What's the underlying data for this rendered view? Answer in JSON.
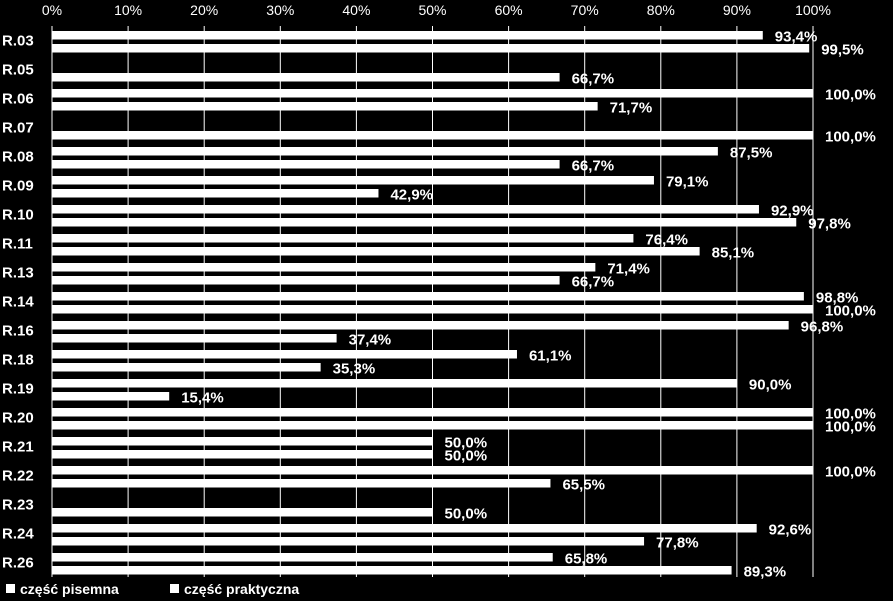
{
  "chart_data": {
    "type": "bar",
    "orientation": "horizontal",
    "categories": [
      "R.03",
      "R.05",
      "R.06",
      "R.07",
      "R.08",
      "R.09",
      "R.10",
      "R.11",
      "R.13",
      "R.14",
      "R.16",
      "R.18",
      "R.19",
      "R.20",
      "R.21",
      "R.22",
      "R.23",
      "R.24",
      "R.26"
    ],
    "series": [
      {
        "name": "część pisemna",
        "values": [
          93.4,
          null,
          100.0,
          null,
          87.5,
          79.1,
          92.9,
          76.4,
          71.4,
          98.8,
          96.8,
          61.1,
          90.0,
          100.0,
          50.0,
          100.0,
          null,
          92.6,
          65.8
        ],
        "labels": [
          "93,4%",
          "",
          "100,0%",
          "",
          "87,5%",
          "79,1%",
          "92,9%",
          "76,4%",
          "71,4%",
          "98,8%",
          "96,8%",
          "61,1%",
          "90,0%",
          "100,0%",
          "50,0%",
          "100,0%",
          "",
          "92,6%",
          "65,8%"
        ]
      },
      {
        "name": "część praktyczna",
        "values": [
          99.5,
          66.7,
          71.7,
          100.0,
          66.7,
          42.9,
          97.8,
          85.1,
          66.7,
          100.0,
          37.4,
          35.3,
          15.4,
          100.0,
          50.0,
          65.5,
          50.0,
          77.8,
          89.3
        ],
        "labels": [
          "99,5%",
          "66,7%",
          "71,7%",
          "100,0%",
          "66,7%",
          "42,9%",
          "97,8%",
          "85,1%",
          "66,7%",
          "100,0%",
          "37,4%",
          "35,3%",
          "15,4%",
          "100,0%",
          "50,0%",
          "65,5%",
          "50,0%",
          "77,8%",
          "89,3%"
        ]
      }
    ],
    "xlim": [
      0,
      100
    ],
    "x_ticks": [
      "0%",
      "10%",
      "20%",
      "30%",
      "40%",
      "50%",
      "60%",
      "70%",
      "80%",
      "90%",
      "100%"
    ],
    "grid": true,
    "legend_placement": "bottom-left",
    "colors": {
      "background": "#000000",
      "bars": "#ffffff",
      "text": "#ffffff"
    }
  }
}
